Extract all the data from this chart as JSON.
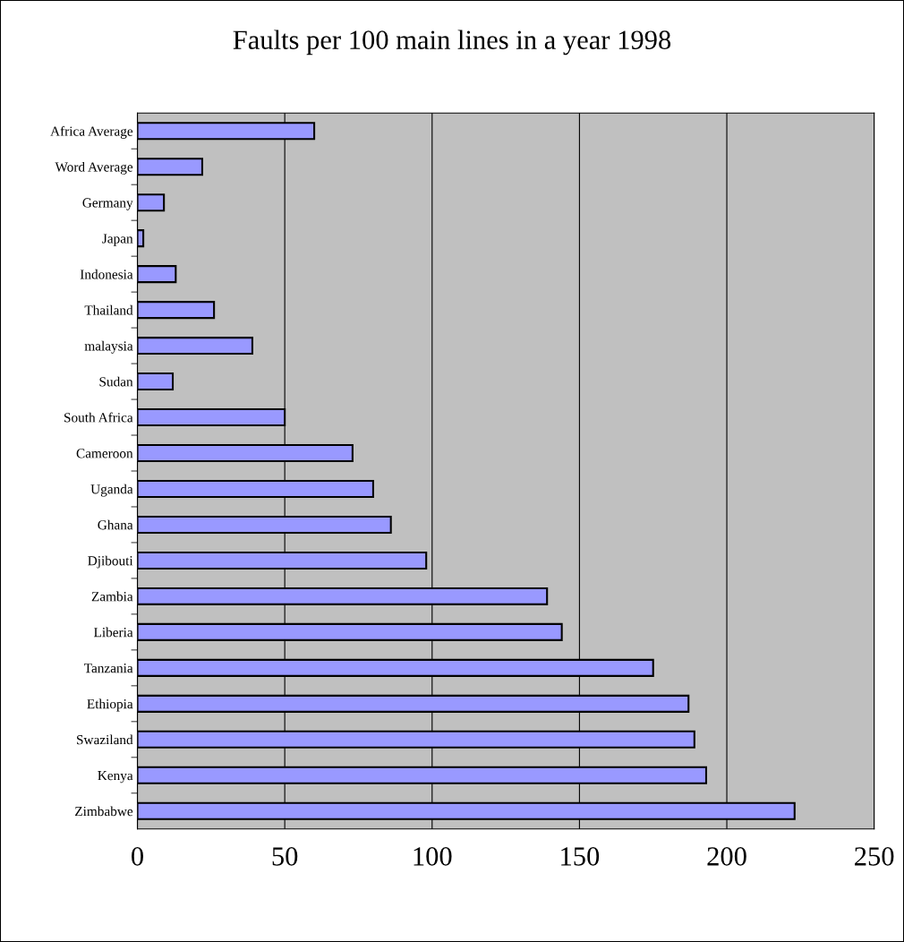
{
  "chart_data": {
    "type": "bar",
    "orientation": "horizontal",
    "title": "Faults per 100 main lines in a year 1998",
    "categories": [
      "Africa Average",
      "Word Average",
      "Germany",
      "Japan",
      "Indonesia",
      "Thailand",
      "malaysia",
      "Sudan",
      "South Africa",
      "Cameroon",
      "Uganda",
      "Ghana",
      "Djibouti",
      "Zambia",
      "Liberia",
      "Tanzania",
      "Ethiopia",
      "Swaziland",
      "Kenya",
      "Zimbabwe"
    ],
    "values": [
      60,
      22,
      9,
      2,
      13,
      26,
      39,
      12,
      50,
      73,
      80,
      86,
      98,
      139,
      144,
      175,
      187,
      189,
      193,
      223
    ],
    "color": "#9999ff",
    "xlim": [
      0,
      250
    ],
    "xticks": [
      0,
      50,
      100,
      150,
      200,
      250
    ],
    "grid": "x",
    "legend": false
  }
}
